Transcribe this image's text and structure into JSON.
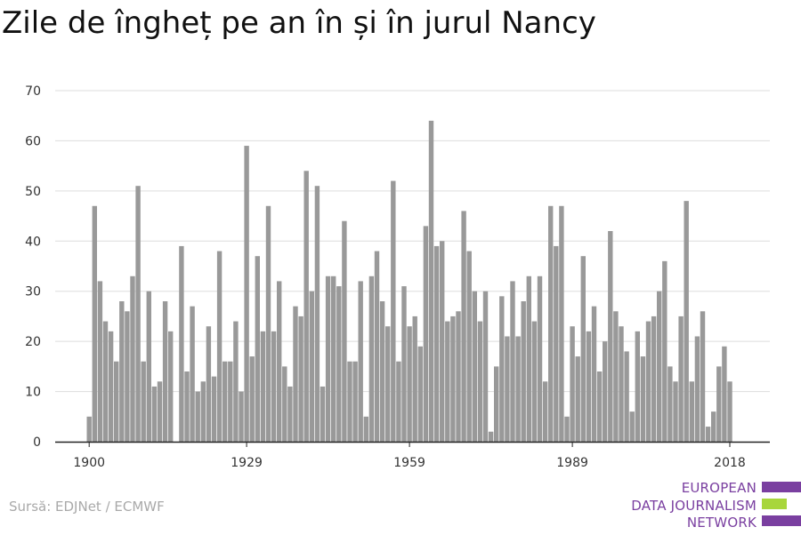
{
  "title": "Zile de îngheț pe an în și în jurul Nancy",
  "source": "Sursă: EDJNet / ECMWF",
  "logo": {
    "lines": [
      "EUROPEAN",
      "DATA JOURNALISM",
      "NETWORK"
    ],
    "colors": {
      "purple": "#7a3fa0",
      "green": "#a8d63c"
    }
  },
  "colors": {
    "bar": "#999999",
    "grid": "#dddddd",
    "axis": "#222222",
    "text": "#333333"
  },
  "chart_data": {
    "type": "bar",
    "xlabel": "",
    "ylabel": "",
    "ylim": [
      0,
      70
    ],
    "yticks": [
      0,
      10,
      20,
      30,
      40,
      50,
      60,
      70
    ],
    "xticks": [
      1900,
      1929,
      1959,
      1989,
      2018
    ],
    "grid": true,
    "x": [
      1900,
      1901,
      1902,
      1903,
      1904,
      1905,
      1906,
      1907,
      1908,
      1909,
      1910,
      1911,
      1912,
      1913,
      1914,
      1915,
      1916,
      1917,
      1918,
      1919,
      1920,
      1921,
      1922,
      1923,
      1924,
      1925,
      1926,
      1927,
      1928,
      1929,
      1930,
      1931,
      1932,
      1933,
      1934,
      1935,
      1936,
      1937,
      1938,
      1939,
      1940,
      1941,
      1942,
      1943,
      1944,
      1945,
      1946,
      1947,
      1948,
      1949,
      1950,
      1951,
      1952,
      1953,
      1954,
      1955,
      1956,
      1957,
      1958,
      1959,
      1960,
      1961,
      1962,
      1963,
      1964,
      1965,
      1966,
      1967,
      1968,
      1969,
      1970,
      1971,
      1972,
      1973,
      1974,
      1975,
      1976,
      1977,
      1978,
      1979,
      1980,
      1981,
      1982,
      1983,
      1984,
      1985,
      1986,
      1987,
      1988,
      1989,
      1990,
      1991,
      1992,
      1993,
      1994,
      1995,
      1996,
      1997,
      1998,
      1999,
      2000,
      2001,
      2002,
      2003,
      2004,
      2005,
      2006,
      2007,
      2008,
      2009,
      2010,
      2011,
      2012,
      2013,
      2014,
      2015,
      2016,
      2017,
      2018
    ],
    "values": [
      5,
      47,
      32,
      24,
      22,
      16,
      28,
      26,
      33,
      51,
      16,
      30,
      11,
      12,
      28,
      22,
      0,
      39,
      14,
      27,
      10,
      12,
      23,
      13,
      38,
      16,
      16,
      24,
      10,
      59,
      17,
      37,
      22,
      47,
      22,
      32,
      15,
      11,
      27,
      25,
      54,
      30,
      51,
      11,
      33,
      33,
      31,
      44,
      16,
      16,
      32,
      5,
      33,
      38,
      28,
      23,
      52,
      16,
      31,
      23,
      25,
      19,
      43,
      64,
      39,
      40,
      24,
      25,
      26,
      46,
      38,
      30,
      24,
      30,
      2,
      15,
      29,
      21,
      32,
      21,
      28,
      33,
      24,
      33,
      12,
      47,
      39,
      47,
      5,
      23,
      17,
      37,
      22,
      27,
      14,
      20,
      42,
      26,
      23,
      18,
      6,
      22,
      17,
      24,
      25,
      30,
      36,
      15,
      12,
      25,
      48,
      12,
      21,
      26,
      3,
      6,
      15,
      19,
      12
    ]
  }
}
